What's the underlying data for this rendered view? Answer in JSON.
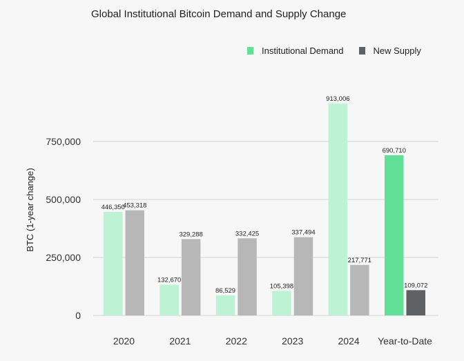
{
  "chart_data": {
    "type": "bar",
    "title": "Global Institutional Bitcoin Demand and Supply Change",
    "ylabel": "BTC (1-year change)",
    "xlabel": "",
    "categories": [
      "2020",
      "2021",
      "2022",
      "2023",
      "2024",
      "Year-to-Date"
    ],
    "series": [
      {
        "name": "Institutional Demand",
        "values": [
          446350,
          132670,
          86529,
          105398,
          913006,
          690710
        ],
        "labels": [
          "446,350",
          "132,670",
          "86,529",
          "105,398",
          "913,006",
          "690,710"
        ]
      },
      {
        "name": "New Supply",
        "values": [
          453318,
          329288,
          332425,
          337494,
          217771,
          109072
        ],
        "labels": [
          "453,318",
          "329,288",
          "332,425",
          "337,494",
          "217,771",
          "109,072"
        ]
      }
    ],
    "yticks": [
      0,
      250000,
      500000,
      750000
    ],
    "ytick_labels": [
      "0",
      "250,000",
      "500,000",
      "750,000"
    ],
    "ylim": [
      0,
      913006
    ],
    "grid": true,
    "legend_position": "top-right",
    "colors": {
      "demand": "#bdf2d5",
      "demand_highlight": "#62df96",
      "supply": "#b7b7b7",
      "supply_highlight": "#5f6264",
      "grid": "#d3d3d3"
    }
  }
}
